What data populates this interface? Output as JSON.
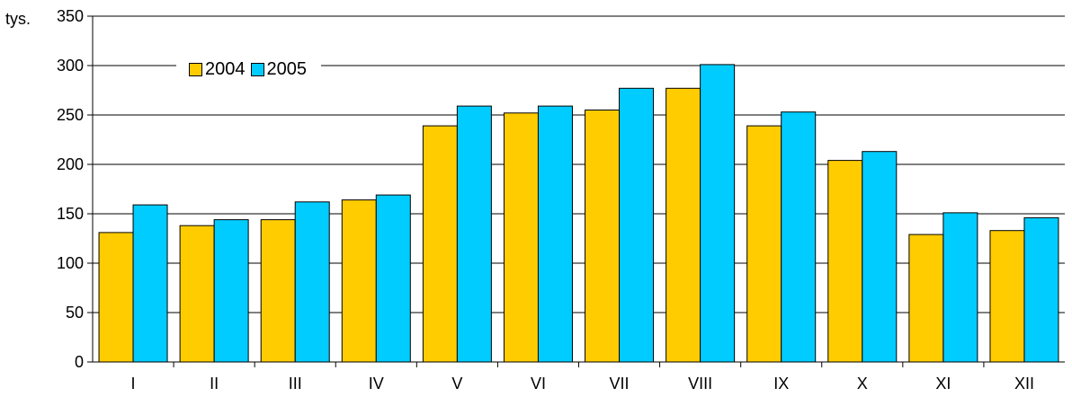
{
  "chart_data": {
    "type": "bar",
    "ylabel": "tys.",
    "ylim": [
      0,
      350
    ],
    "yticks": [
      0,
      50,
      100,
      150,
      200,
      250,
      300,
      350
    ],
    "grid": true,
    "legend_position": "top-left",
    "categories": [
      "I",
      "II",
      "III",
      "IV",
      "V",
      "VI",
      "VII",
      "VIII",
      "IX",
      "X",
      "XI",
      "XII"
    ],
    "series": [
      {
        "name": "2004",
        "color": "#ffcc00",
        "values": [
          131,
          138,
          144,
          164,
          239,
          252,
          255,
          277,
          239,
          204,
          129,
          133
        ]
      },
      {
        "name": "2005",
        "color": "#00ccff",
        "values": [
          159,
          144,
          162,
          169,
          259,
          259,
          277,
          301,
          253,
          213,
          151,
          146
        ]
      }
    ]
  }
}
